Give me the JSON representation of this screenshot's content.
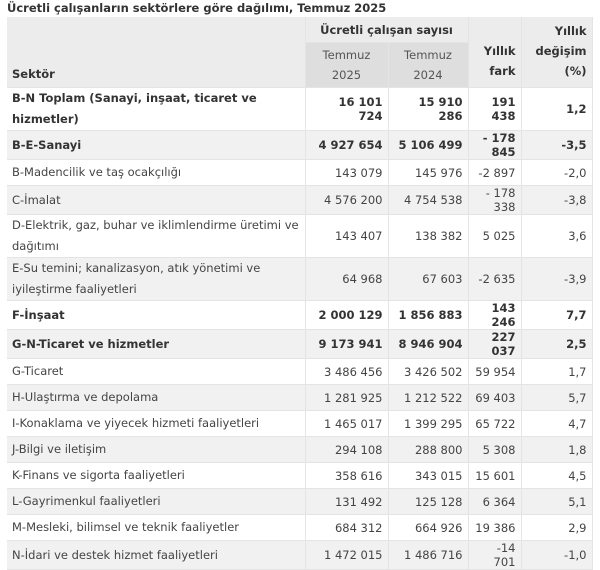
{
  "title": "Ücretli çalışanların sektörlere göre dağılımı, Temmuz 2025",
  "headers": {
    "sector": "Sektör",
    "group": "Ücretli çalışan sayısı",
    "col_2025": [
      "Temmuz",
      "2025"
    ],
    "col_2024": [
      "Temmuz",
      "2024"
    ],
    "diff": [
      "Yıllık",
      "fark"
    ],
    "pct": [
      "Yıllık",
      "değişim",
      "(%)"
    ]
  },
  "rows": [
    {
      "sector": "B-N Toplam (Sanayi, inşaat, ticaret ve hizmetler)",
      "v2025": "16 101 724",
      "v2024": "15 910 286",
      "diff": "191 438",
      "pct": "1,2",
      "bold": true
    },
    {
      "sector": "B-E-Sanayi",
      "v2025": "4 927 654",
      "v2024": "5 106 499",
      "diff": "- 178 845",
      "pct": "-3,5",
      "bold": true
    },
    {
      "sector": "B-Madencilik ve taş ocakçılığı",
      "v2025": "143 079",
      "v2024": "145 976",
      "diff": "-2 897",
      "pct": "-2,0"
    },
    {
      "sector": "C-İmalat",
      "v2025": "4 576 200",
      "v2024": "4 754 538",
      "diff": "- 178 338",
      "pct": "-3,8"
    },
    {
      "sector": "D-Elektrik, gaz, buhar ve iklimlendirme üretimi ve dağıtımı",
      "v2025": "143 407",
      "v2024": "138 382",
      "diff": "5 025",
      "pct": "3,6",
      "tall": true
    },
    {
      "sector": "E-Su temini; kanalizasyon, atık yönetimi ve iyileştirme faaliyetleri",
      "v2025": "64 968",
      "v2024": "67 603",
      "diff": "-2 635",
      "pct": "-3,9",
      "tall": true
    },
    {
      "sector": "F-İnşaat",
      "v2025": "2 000 129",
      "v2024": "1 856 883",
      "diff": "143 246",
      "pct": "7,7",
      "bold": true
    },
    {
      "sector": "G-N-Ticaret ve hizmetler",
      "v2025": "9 173 941",
      "v2024": "8 946 904",
      "diff": "227 037",
      "pct": "2,5",
      "bold": true
    },
    {
      "sector": "G-Ticaret",
      "v2025": "3 486 456",
      "v2024": "3 426 502",
      "diff": "59 954",
      "pct": "1,7"
    },
    {
      "sector": "H-Ulaştırma ve depolama",
      "v2025": "1 281 925",
      "v2024": "1 212 522",
      "diff": "69 403",
      "pct": "5,7"
    },
    {
      "sector": "I-Konaklama ve yiyecek hizmeti faaliyetleri",
      "v2025": "1 465 017",
      "v2024": "1 399 295",
      "diff": "65 722",
      "pct": "4,7"
    },
    {
      "sector": "J-Bilgi ve iletişim",
      "v2025": "294 108",
      "v2024": "288 800",
      "diff": "5 308",
      "pct": "1,8"
    },
    {
      "sector": "K-Finans ve sigorta faaliyetleri",
      "v2025": "358 616",
      "v2024": "343 015",
      "diff": "15 601",
      "pct": "4,5"
    },
    {
      "sector": "L-Gayrimenkul faaliyetleri",
      "v2025": "131 492",
      "v2024": "125 128",
      "diff": "6 364",
      "pct": "5,1"
    },
    {
      "sector": "M-Mesleki, bilimsel ve teknik faaliyetler",
      "v2025": "684 312",
      "v2024": "664 926",
      "diff": "19 386",
      "pct": "2,9"
    },
    {
      "sector": "N-İdari ve destek hizmet faaliyetleri",
      "v2025": "1 472 015",
      "v2024": "1 486 716",
      "diff": "-14 701",
      "pct": "-1,0"
    }
  ]
}
